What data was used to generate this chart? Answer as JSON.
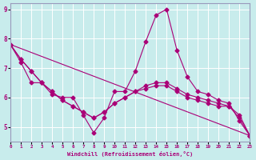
{
  "xlabel": "Windchill (Refroidissement éolien,°C)",
  "ylabel": "",
  "bg_color": "#c8ecec",
  "line_color": "#aa0077",
  "grid_color": "#ffffff",
  "xlim": [
    0,
    23
  ],
  "ylim": [
    4.5,
    9.2
  ],
  "yticks": [
    5,
    6,
    7,
    8,
    9
  ],
  "xticks": [
    0,
    1,
    2,
    3,
    4,
    5,
    6,
    7,
    8,
    9,
    10,
    11,
    12,
    13,
    14,
    15,
    16,
    17,
    18,
    19,
    20,
    21,
    22,
    23
  ],
  "series": [
    {
      "x": [
        0,
        1,
        2,
        3,
        4,
        5,
        6,
        7,
        8,
        9,
        10,
        11,
        12,
        13,
        14,
        15,
        16,
        17,
        18,
        19,
        20,
        21,
        22,
        23
      ],
      "y": [
        7.8,
        7.2,
        6.5,
        6.5,
        6.1,
        6.0,
        6.0,
        5.4,
        4.8,
        5.3,
        6.2,
        6.2,
        6.9,
        7.9,
        8.8,
        9.0,
        7.6,
        6.7,
        6.2,
        6.1,
        5.9,
        5.8,
        5.2,
        4.7
      ],
      "has_markers": true
    },
    {
      "x": [
        0,
        1,
        2,
        3,
        4,
        5,
        6,
        7,
        8,
        9,
        10,
        11,
        12,
        13,
        14,
        15,
        16,
        17,
        18,
        19,
        20,
        21,
        22,
        23
      ],
      "y": [
        7.8,
        7.3,
        6.9,
        6.5,
        6.2,
        5.9,
        5.7,
        5.5,
        5.3,
        5.5,
        5.8,
        6.0,
        6.2,
        6.4,
        6.5,
        6.5,
        6.3,
        6.1,
        6.0,
        5.9,
        5.8,
        5.7,
        5.4,
        4.7
      ],
      "has_markers": true
    },
    {
      "x": [
        0,
        1,
        2,
        3,
        4,
        5,
        6,
        7,
        8,
        9,
        10,
        11,
        12,
        13,
        14,
        15,
        16,
        17,
        18,
        19,
        20,
        21,
        22,
        23
      ],
      "y": [
        7.8,
        7.3,
        6.9,
        6.5,
        6.2,
        5.9,
        5.7,
        5.5,
        5.3,
        5.5,
        5.8,
        6.0,
        6.2,
        6.3,
        6.4,
        6.4,
        6.2,
        6.0,
        5.9,
        5.8,
        5.7,
        5.7,
        5.3,
        4.7
      ],
      "has_markers": true
    },
    {
      "x": [
        0,
        23
      ],
      "y": [
        7.8,
        4.7
      ],
      "has_markers": false
    }
  ]
}
